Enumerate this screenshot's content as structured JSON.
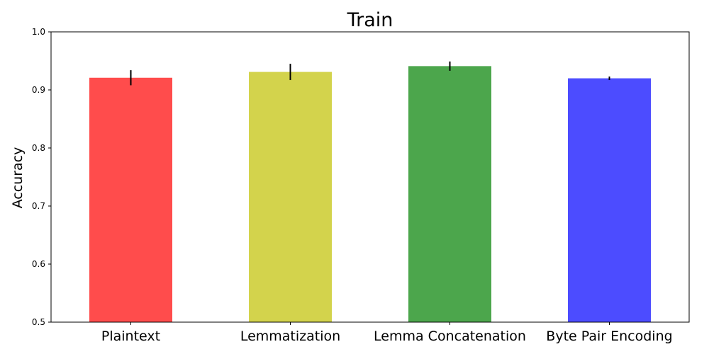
{
  "chart_data": {
    "type": "bar",
    "title": "Train",
    "xlabel": "",
    "ylabel": "Accuracy",
    "ylim": [
      0.5,
      1.0
    ],
    "yticks": [
      "0.5",
      "0.6",
      "0.7",
      "0.8",
      "0.9",
      "1.0"
    ],
    "categories": [
      "Plaintext",
      "Lemmatization",
      "Lemma Concatenation",
      "Byte Pair Encoding"
    ],
    "values": [
      0.921,
      0.931,
      0.941,
      0.92
    ],
    "errors": [
      0.013,
      0.014,
      0.008,
      0.003
    ],
    "colors": [
      "#ff4c4c",
      "#d3d34c",
      "#4ca64c",
      "#4c4cff"
    ],
    "error_color": "#000000",
    "grid": false,
    "legend": "none"
  }
}
